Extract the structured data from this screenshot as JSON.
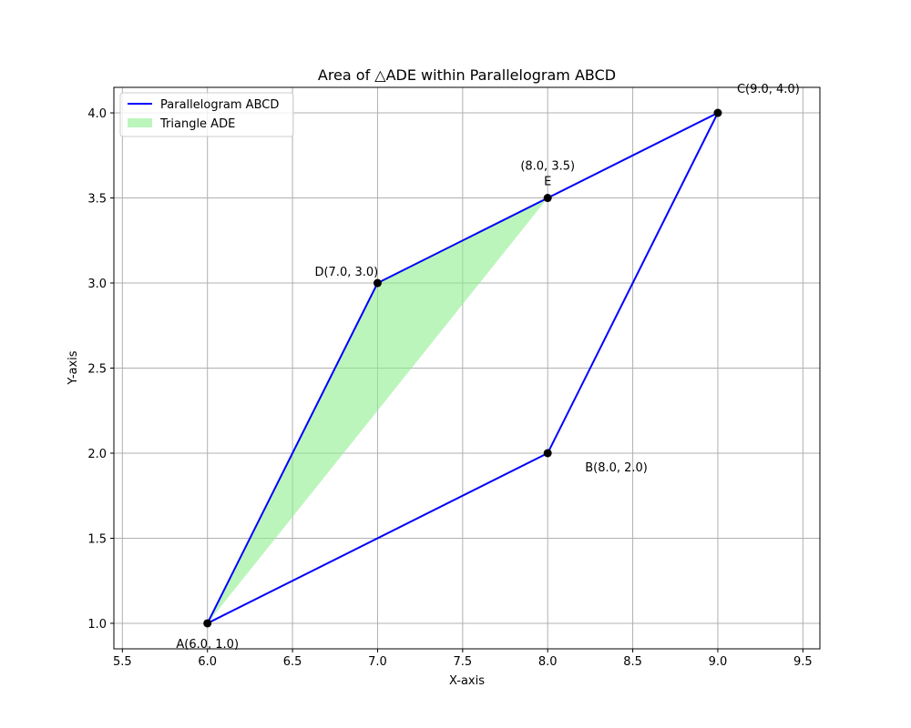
{
  "chart_data": {
    "type": "line",
    "title": "Area of △ADE within Parallelogram ABCD",
    "xlabel": "X-axis",
    "ylabel": "Y-axis",
    "xlim": [
      5.45,
      9.6
    ],
    "ylim": [
      0.85,
      4.15
    ],
    "xticks": [
      5.5,
      6.0,
      6.5,
      7.0,
      7.5,
      8.0,
      8.5,
      9.0,
      9.5
    ],
    "yticks": [
      1.0,
      1.5,
      2.0,
      2.5,
      3.0,
      3.5,
      4.0
    ],
    "xtick_labels": [
      "5.5",
      "6.0",
      "6.5",
      "7.0",
      "7.5",
      "8.0",
      "8.5",
      "9.0",
      "9.5"
    ],
    "ytick_labels": [
      "1.0",
      "1.5",
      "2.0",
      "2.5",
      "3.0",
      "3.5",
      "4.0"
    ],
    "grid": true,
    "legend_position": "upper-left",
    "series": [
      {
        "name": "Parallelogram ABCD",
        "kind": "line",
        "color": "#0000ff",
        "points": [
          [
            6.0,
            1.0
          ],
          [
            8.0,
            2.0
          ],
          [
            9.0,
            4.0
          ],
          [
            7.0,
            3.0
          ],
          [
            6.0,
            1.0
          ]
        ]
      },
      {
        "name": "Triangle ADE",
        "kind": "fill",
        "color": "#90ee90",
        "points": [
          [
            6.0,
            1.0
          ],
          [
            7.0,
            3.0
          ],
          [
            8.0,
            3.5
          ]
        ]
      }
    ],
    "markers": {
      "color": "#000000",
      "points": [
        [
          6.0,
          1.0
        ],
        [
          8.0,
          2.0
        ],
        [
          9.0,
          4.0
        ],
        [
          7.0,
          3.0
        ],
        [
          8.0,
          3.5
        ]
      ]
    },
    "annotations": [
      {
        "text": "A(6.0, 1.0)",
        "x": 6.0,
        "y": 1.0,
        "place": "below"
      },
      {
        "text": "B(8.0, 2.0)",
        "x": 8.0,
        "y": 2.0,
        "place": "lower-right"
      },
      {
        "text": "C(9.0, 4.0)",
        "x": 9.0,
        "y": 4.0,
        "place": "upper-right"
      },
      {
        "text": "D(7.0, 3.0)",
        "x": 7.0,
        "y": 3.0,
        "place": "upper-left"
      },
      {
        "text": "(8.0, 3.5)",
        "x": 8.0,
        "y": 3.5,
        "place": "above-far"
      },
      {
        "text": "E",
        "x": 8.0,
        "y": 3.5,
        "place": "above"
      }
    ]
  }
}
